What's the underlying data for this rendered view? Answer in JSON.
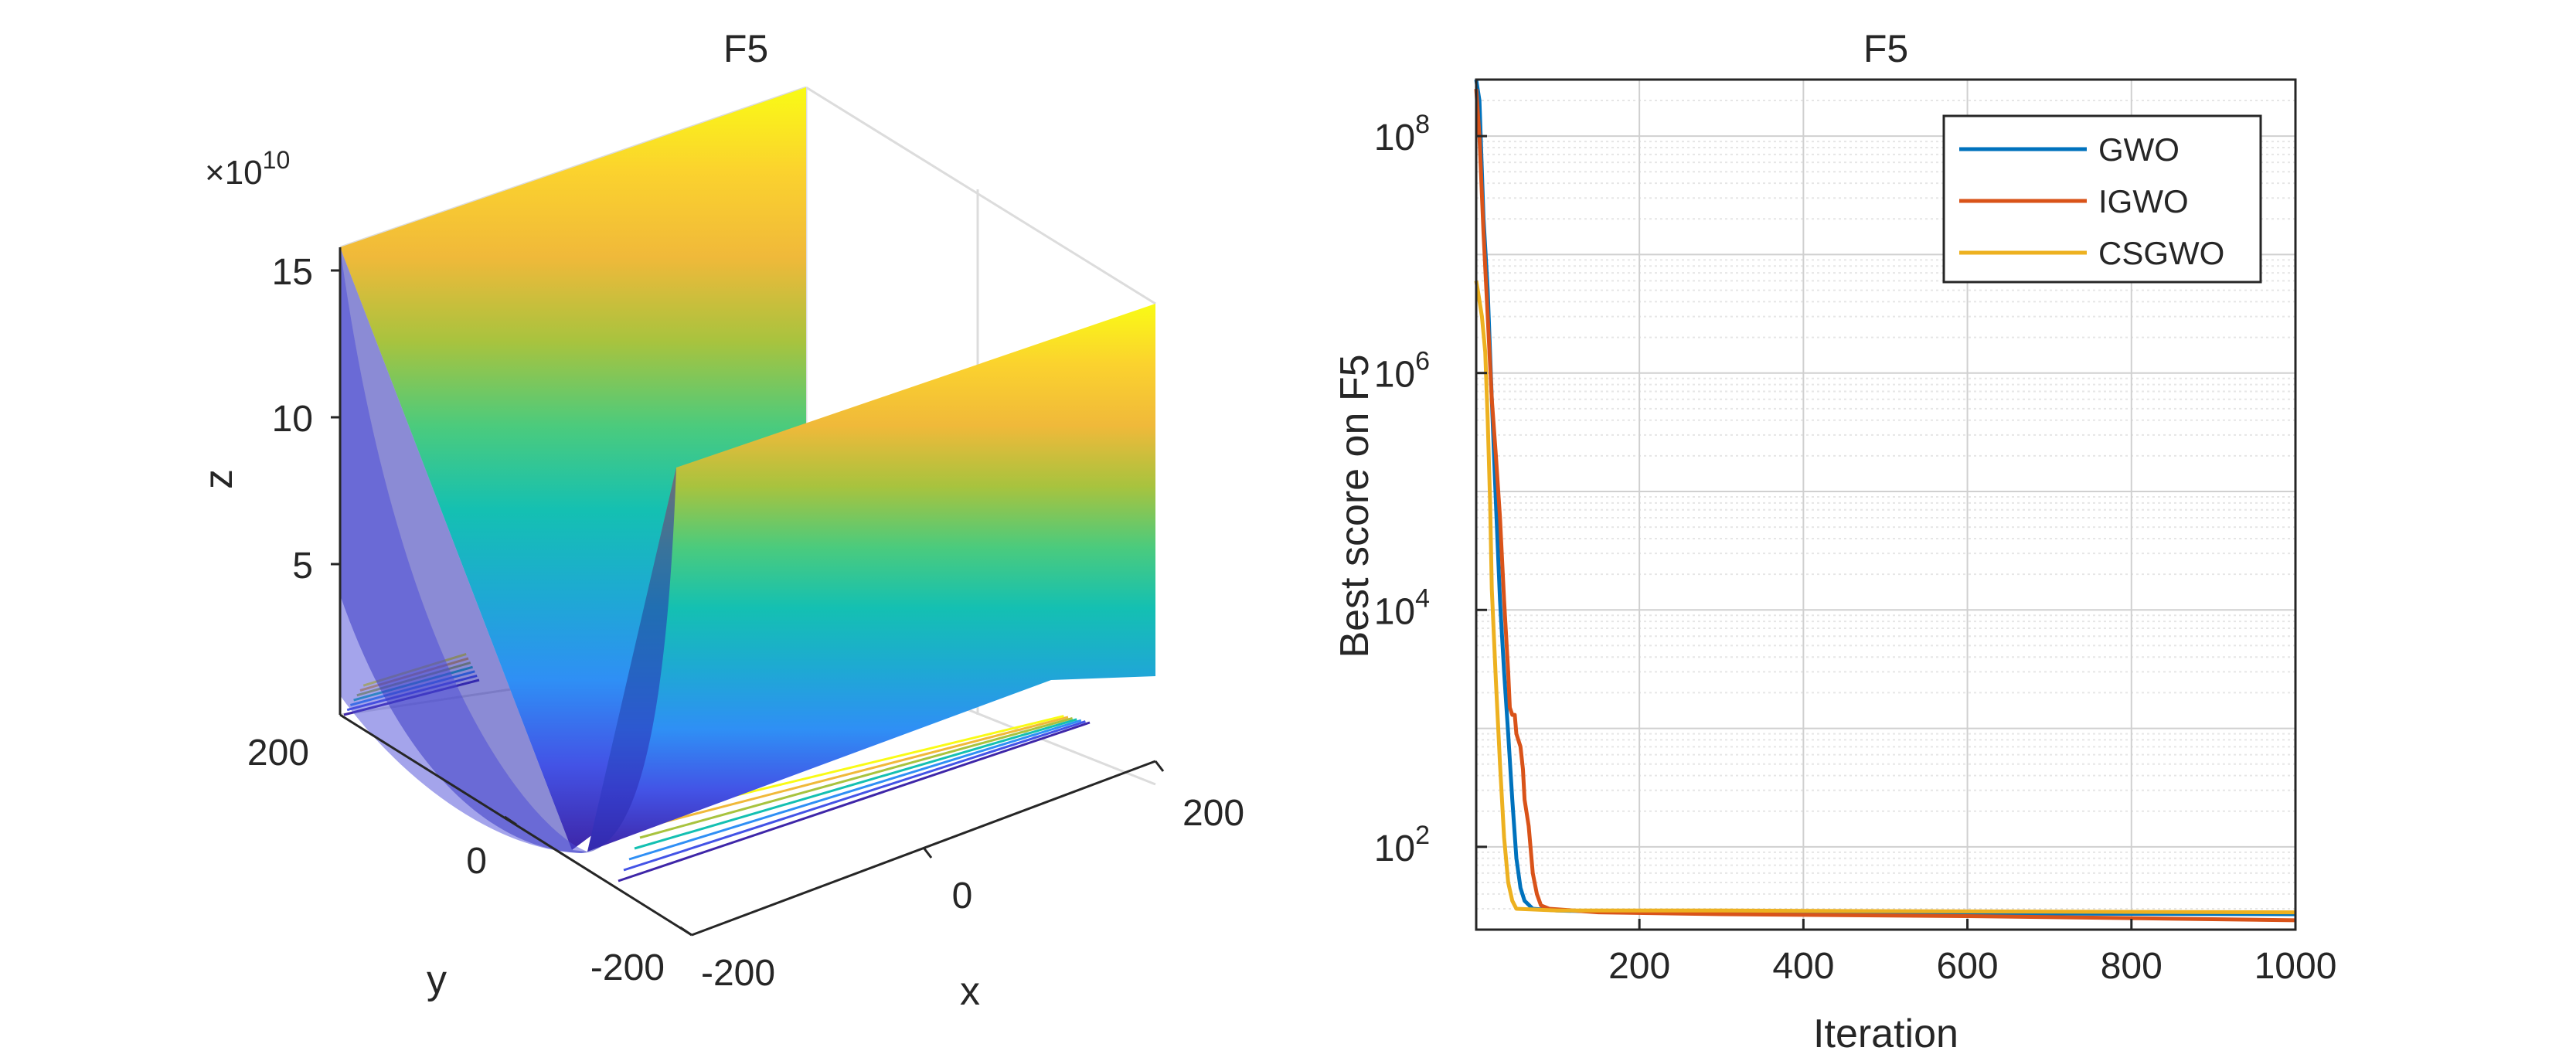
{
  "chart_data": [
    {
      "type": "surface",
      "title": "F5",
      "xlabel": "x",
      "ylabel": "y",
      "zlabel": "z",
      "z_exponent_label": "×10",
      "z_exponent_power": "10",
      "x_ticks": [
        "-200",
        "0",
        "200"
      ],
      "y_ticks": [
        "-200",
        "0",
        "200"
      ],
      "z_ticks": [
        "5",
        "10",
        "15"
      ],
      "x_range": [
        -200,
        200
      ],
      "y_range": [
        -200,
        200
      ],
      "z_range": [
        0,
        160000000000
      ],
      "colormap": [
        "#3e26a8",
        "#4353e6",
        "#2f8ff5",
        "#1ea9d3",
        "#14c0b2",
        "#4bcb7d",
        "#a8c33e",
        "#f0b93a",
        "#fbd22e",
        "#f9fb15"
      ],
      "contour_projection": true,
      "grid": true
    },
    {
      "type": "line",
      "title": "F5",
      "xlabel": "Iteration",
      "ylabel": "Best score on F5",
      "x_ticks": [
        "200",
        "400",
        "600",
        "800",
        "1000"
      ],
      "y_ticks": [
        {
          "base": "10",
          "exp": "2",
          "value": 100
        },
        {
          "base": "10",
          "exp": "4",
          "value": 10000
        },
        {
          "base": "10",
          "exp": "6",
          "value": 1000000
        },
        {
          "base": "10",
          "exp": "8",
          "value": 100000000
        }
      ],
      "xlim": [
        1,
        1000
      ],
      "ylim": [
        20,
        300000000
      ],
      "y_scale": "log",
      "grid": true,
      "minor_grid": true,
      "legend_position": "top-right",
      "series": [
        {
          "name": "GWO",
          "color": "#0072bd",
          "points": [
            [
              1,
              300000000
            ],
            [
              5,
              200000000
            ],
            [
              10,
              20000000
            ],
            [
              15,
              5000000
            ],
            [
              20,
              600000
            ],
            [
              25,
              80000
            ],
            [
              30,
              12000
            ],
            [
              35,
              3000
            ],
            [
              40,
              900
            ],
            [
              45,
              250
            ],
            [
              50,
              80
            ],
            [
              55,
              45
            ],
            [
              60,
              35
            ],
            [
              70,
              30
            ],
            [
              100,
              29
            ],
            [
              200,
              28
            ],
            [
              400,
              28
            ],
            [
              600,
              27.5
            ],
            [
              800,
              27.2
            ],
            [
              1000,
              27
            ]
          ]
        },
        {
          "name": "IGWO",
          "color": "#d95319",
          "points": [
            [
              1,
              250000000
            ],
            [
              5,
              100000000
            ],
            [
              10,
              15000000
            ],
            [
              15,
              3000000
            ],
            [
              20,
              600000
            ],
            [
              25,
              200000
            ],
            [
              30,
              60000
            ],
            [
              35,
              12000
            ],
            [
              40,
              3000
            ],
            [
              42,
              1500
            ],
            [
              45,
              1300
            ],
            [
              48,
              1300
            ],
            [
              50,
              900
            ],
            [
              55,
              700
            ],
            [
              58,
              450
            ],
            [
              60,
              250
            ],
            [
              65,
              150
            ],
            [
              70,
              60
            ],
            [
              75,
              40
            ],
            [
              80,
              32
            ],
            [
              90,
              30
            ],
            [
              150,
              28
            ],
            [
              300,
              27
            ],
            [
              600,
              26
            ],
            [
              800,
              25
            ],
            [
              1000,
              24
            ]
          ]
        },
        {
          "name": "CSGWO",
          "color": "#edb120",
          "points": [
            [
              1,
              6000000
            ],
            [
              3,
              5000000
            ],
            [
              8,
              3000000
            ],
            [
              12,
              1500000
            ],
            [
              15,
              400000
            ],
            [
              18,
              80000
            ],
            [
              20,
              15000
            ],
            [
              25,
              2500
            ],
            [
              30,
              500
            ],
            [
              35,
              120
            ],
            [
              40,
              50
            ],
            [
              45,
              35
            ],
            [
              50,
              30
            ],
            [
              100,
              29
            ],
            [
              300,
              29
            ],
            [
              600,
              28.5
            ],
            [
              1000,
              28
            ]
          ]
        }
      ]
    }
  ]
}
